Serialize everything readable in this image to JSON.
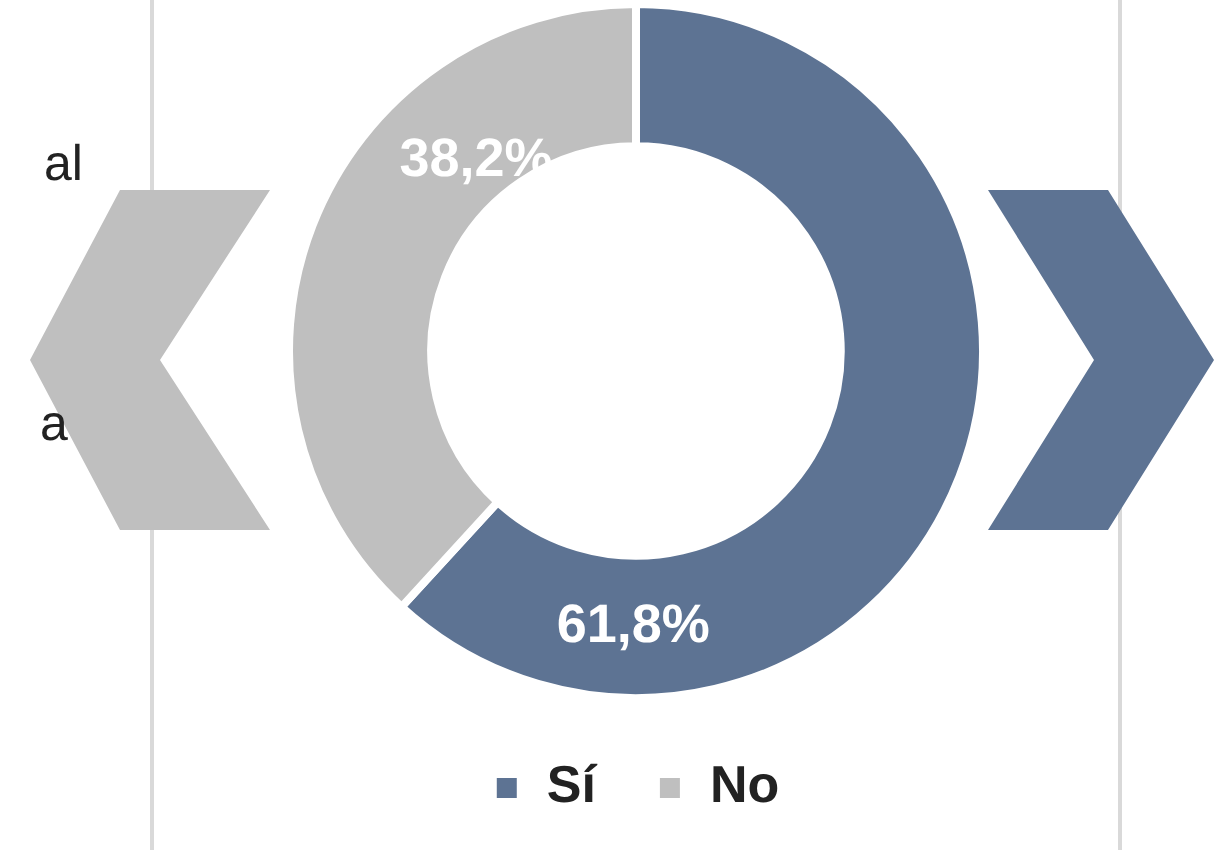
{
  "chart_data": {
    "type": "donut",
    "categories": [
      "Sí",
      "No"
    ],
    "values": [
      61.8,
      38.2
    ],
    "colors": [
      "#5d7393",
      "#bfbfbf"
    ],
    "value_labels": [
      "61,8%",
      "38,2%"
    ],
    "legend": "bottom",
    "annotations": [
      "al",
      "a"
    ]
  }
}
